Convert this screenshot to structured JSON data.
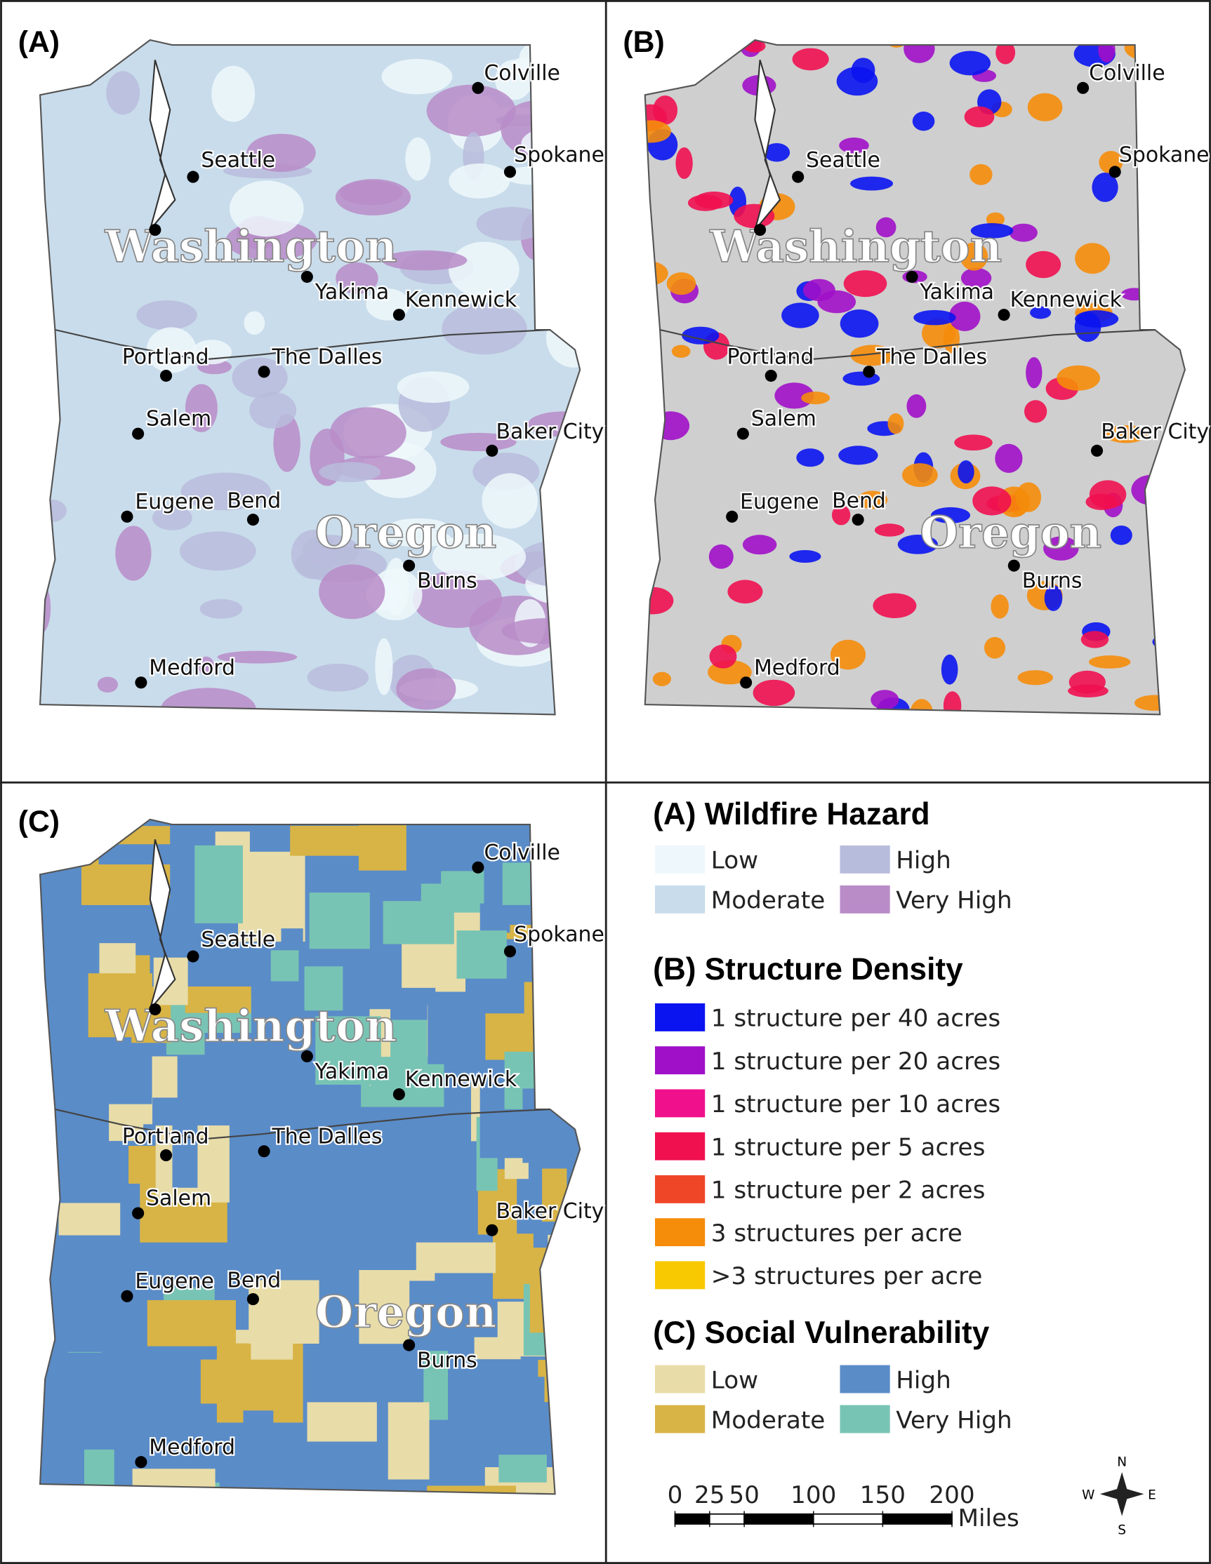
{
  "panels": [
    {
      "label": "(A)"
    },
    {
      "label": "(B)"
    },
    {
      "label": "(C)"
    }
  ],
  "cities": [
    {
      "name": "Colville"
    },
    {
      "name": "Spokane"
    },
    {
      "name": "Seattle"
    },
    {
      "name": "Yakima"
    },
    {
      "name": "Kennewick"
    },
    {
      "name": "Portland"
    },
    {
      "name": "The Dalles"
    },
    {
      "name": "Salem"
    },
    {
      "name": "Baker City"
    },
    {
      "name": "Eugene"
    },
    {
      "name": "Bend"
    },
    {
      "name": "Burns"
    },
    {
      "name": "Medford"
    }
  ],
  "state_labels": [
    "Washington",
    "Oregon"
  ],
  "legend": {
    "sections": [
      {
        "title": "(A) Wildfire Hazard",
        "items": [
          {
            "name": "Low",
            "color": "#eef8fc"
          },
          {
            "name": "High",
            "color": "#b8bcdc"
          },
          {
            "name": "Moderate",
            "color": "#c9dceb"
          },
          {
            "name": "Very High",
            "color": "#b98cc8"
          }
        ]
      },
      {
        "title": "(B) Structure Density",
        "items": [
          {
            "name": "1 structure per 40 acres",
            "color": "#0a14f0"
          },
          {
            "name": "1 structure per 20 acres",
            "color": "#a010c8"
          },
          {
            "name": "1 structure per 10 acres",
            "color": "#f0108c"
          },
          {
            "name": "1 structure per 5 acres",
            "color": "#f01050"
          },
          {
            "name": "1 structure per 2 acres",
            "color": "#f04628"
          },
          {
            "name": "3 structures per acre",
            "color": "#f58c0a"
          },
          {
            "name": ">3 structures per acre",
            "color": "#f8c800"
          }
        ]
      },
      {
        "title": "(C) Social Vulnerability",
        "items": [
          {
            "name": "Low",
            "color": "#e8dca8"
          },
          {
            "name": "High",
            "color": "#5a8cc8"
          },
          {
            "name": "Moderate",
            "color": "#d8b446"
          },
          {
            "name": "Very High",
            "color": "#78c4b4"
          }
        ]
      }
    ]
  },
  "scale_bar": {
    "ticks": [
      0,
      25,
      50,
      100,
      150,
      200
    ],
    "unit": "Miles"
  },
  "compass": {
    "n": "N",
    "s": "S",
    "e": "E",
    "w": "W"
  }
}
